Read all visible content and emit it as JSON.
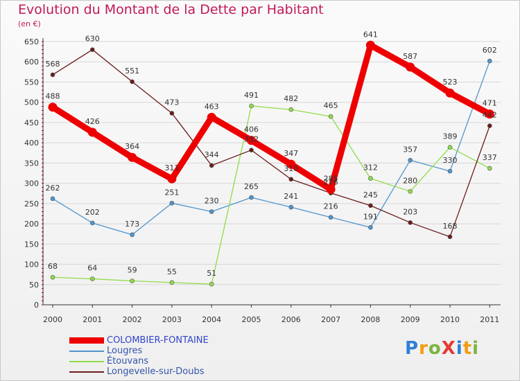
{
  "title": "Evolution du Montant de la Dette par Habitant",
  "subtitle": "(en €)",
  "logo": {
    "text": "ProXiti",
    "colors": [
      "#2e7fd6",
      "#f39c12",
      "#7cb342",
      "#e53935",
      "#2e7fd6",
      "#f39c12",
      "#7cb342"
    ]
  },
  "chart_data": {
    "type": "line",
    "categories": [
      "2000",
      "2001",
      "2002",
      "2003",
      "2004",
      "2005",
      "2006",
      "2007",
      "2008",
      "2009",
      "2010",
      "2011"
    ],
    "ylim": [
      0,
      650
    ],
    "yticks": [
      0,
      50,
      100,
      150,
      200,
      250,
      300,
      350,
      400,
      450,
      500,
      550,
      600,
      650
    ],
    "grid": true,
    "legend_position": "bottom",
    "series": [
      {
        "name": "COLOMBIER-FONTAINE",
        "color": "#ee0000",
        "values": [
          488,
          426,
          364,
          311,
          463,
          406,
          347,
          285,
          641,
          587,
          523,
          471
        ]
      },
      {
        "name": "Lougres",
        "color": "#4f94cd",
        "values": [
          262,
          202,
          173,
          251,
          230,
          265,
          241,
          216,
          191,
          357,
          330,
          602
        ]
      },
      {
        "name": "Étouvans",
        "color": "#8fdc4a",
        "values": [
          68,
          64,
          59,
          55,
          51,
          491,
          482,
          465,
          312,
          280,
          389,
          337
        ]
      },
      {
        "name": "Longevelle-sur-Doubs",
        "color": "#6b1c1c",
        "values": [
          568,
          630,
          551,
          473,
          344,
          382,
          310,
          276,
          245,
          203,
          168,
          442
        ]
      }
    ]
  }
}
